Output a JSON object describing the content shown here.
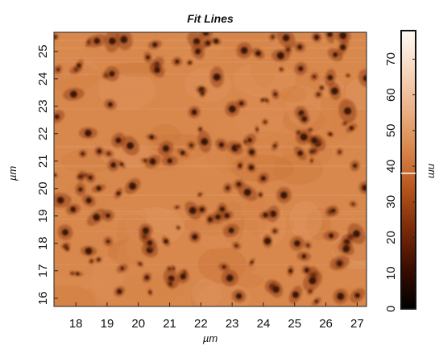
{
  "chart_data": {
    "type": "heatmap",
    "title": "Fit Lines",
    "xlabel": "µm",
    "ylabel": "µm",
    "colorbar_label": "nm",
    "xlim": [
      17.3,
      27.3
    ],
    "ylim": [
      15.7,
      25.7
    ],
    "x_ticks": [
      18,
      19,
      20,
      21,
      22,
      23,
      24,
      25,
      26,
      27
    ],
    "y_ticks": [
      16,
      17,
      18,
      19,
      20,
      21,
      22,
      23,
      24,
      25
    ],
    "colorbar_range": [
      0,
      78
    ],
    "colorbar_ticks": [
      0,
      10,
      20,
      30,
      40,
      50,
      60,
      70
    ],
    "colorbar_marker": 38,
    "colormap": [
      "#000000",
      "#3a0c00",
      "#7a2a08",
      "#b4541c",
      "#d9864a",
      "#ebb086",
      "#f6d7bd",
      "#fffaf4"
    ],
    "surface_level_nm": 45,
    "pit_level_nm": 12
  }
}
